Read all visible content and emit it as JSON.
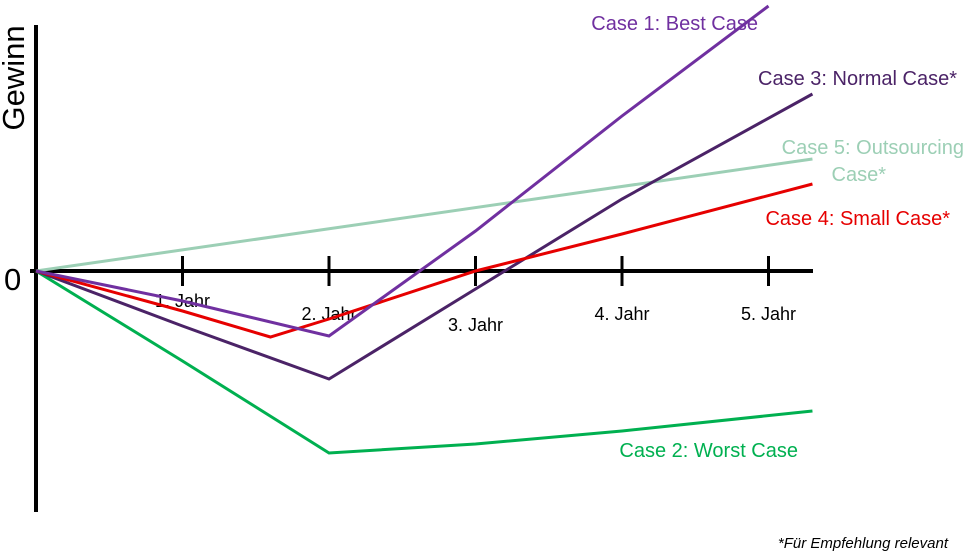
{
  "chart_data": {
    "type": "line",
    "ylabel": "Gewinn",
    "y_zero_label": "0",
    "categories": [
      "1. Jahr",
      "2. Jahr",
      "3. Jahr",
      "4. Jahr",
      "5. Jahr"
    ],
    "x_range": [
      0,
      5.3
    ],
    "y_range": [
      -2.4,
      2.65
    ],
    "grid": false,
    "series": [
      {
        "name": "Case 1: Best Case",
        "color": "#7030a0",
        "points": [
          [
            0,
            0
          ],
          [
            1,
            -0.3
          ],
          [
            2,
            -0.65
          ],
          [
            3,
            0.4
          ],
          [
            4,
            1.55
          ],
          [
            5,
            2.65
          ]
        ]
      },
      {
        "name": "Case 2: Worst Case",
        "color": "#00b050",
        "points": [
          [
            0,
            0
          ],
          [
            1,
            -0.9
          ],
          [
            2,
            -1.82
          ],
          [
            3,
            -1.73
          ],
          [
            4,
            -1.6
          ],
          [
            5.3,
            -1.4
          ]
        ]
      },
      {
        "name": "Case 3: Normal Case*",
        "color": "#4b2367",
        "points": [
          [
            0,
            0
          ],
          [
            1,
            -0.55
          ],
          [
            2,
            -1.08
          ],
          [
            3,
            -0.18
          ],
          [
            4,
            0.72
          ],
          [
            5.3,
            1.77
          ]
        ]
      },
      {
        "name": "Case 4: Small Case*",
        "color": "#e60000",
        "points": [
          [
            0,
            0
          ],
          [
            1,
            -0.4
          ],
          [
            1.6,
            -0.66
          ],
          [
            2,
            -0.48
          ],
          [
            3,
            0
          ],
          [
            4,
            0.37
          ],
          [
            5.3,
            0.87
          ]
        ]
      },
      {
        "name": "Case 5: Outsourcing Case*",
        "color": "#9ccfb5",
        "points": [
          [
            0,
            0
          ],
          [
            5.3,
            1.12
          ]
        ]
      }
    ],
    "series_labels": [
      {
        "lines": [
          "Case 1: Best Case"
        ]
      },
      {
        "lines": [
          "Case 2: Worst Case"
        ]
      },
      {
        "lines": [
          "Case 3: Normal Case*"
        ]
      },
      {
        "lines": [
          "Case 4: Small Case*"
        ]
      },
      {
        "lines": [
          "Case 5: Outsourcing",
          "Case*"
        ]
      }
    ],
    "footnote": "*Für Empfehlung relevant"
  }
}
